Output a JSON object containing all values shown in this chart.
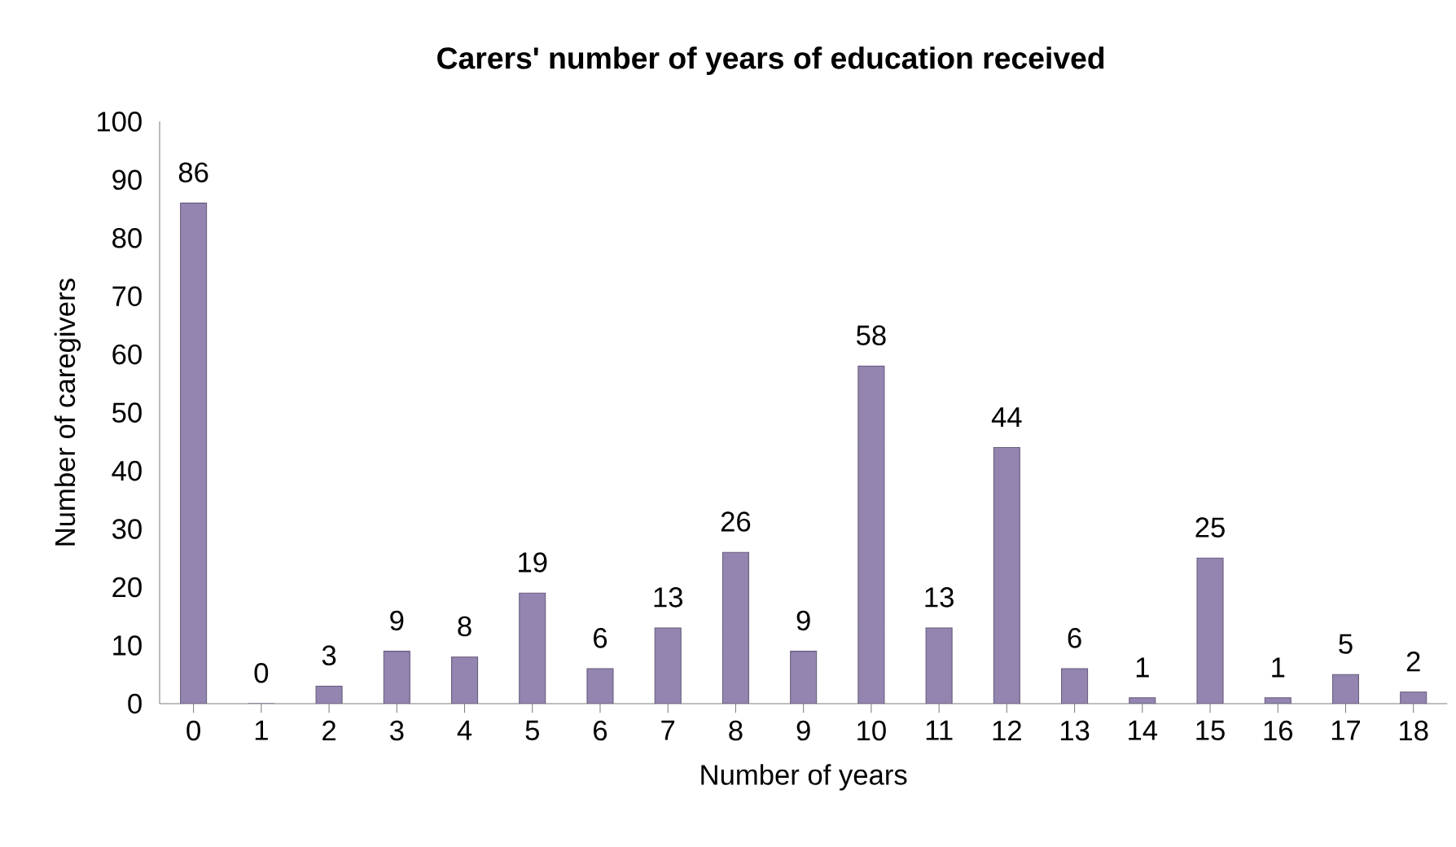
{
  "chart_data": {
    "type": "bar",
    "title": "Carers' number of years of education received",
    "xlabel": "Number of years",
    "ylabel": "Number of caregivers",
    "categories": [
      "0",
      "1",
      "2",
      "3",
      "4",
      "5",
      "6",
      "7",
      "8",
      "9",
      "10",
      "11",
      "12",
      "13",
      "14",
      "15",
      "16",
      "17",
      "18"
    ],
    "values": [
      86,
      0,
      3,
      9,
      8,
      19,
      6,
      13,
      26,
      9,
      58,
      13,
      44,
      6,
      1,
      25,
      1,
      5,
      2
    ],
    "color": "#9384b0",
    "ylim": [
      0,
      100
    ],
    "yticks": [
      0,
      10,
      20,
      30,
      40,
      50,
      60,
      70,
      80,
      90,
      100
    ],
    "data_labels": true
  }
}
